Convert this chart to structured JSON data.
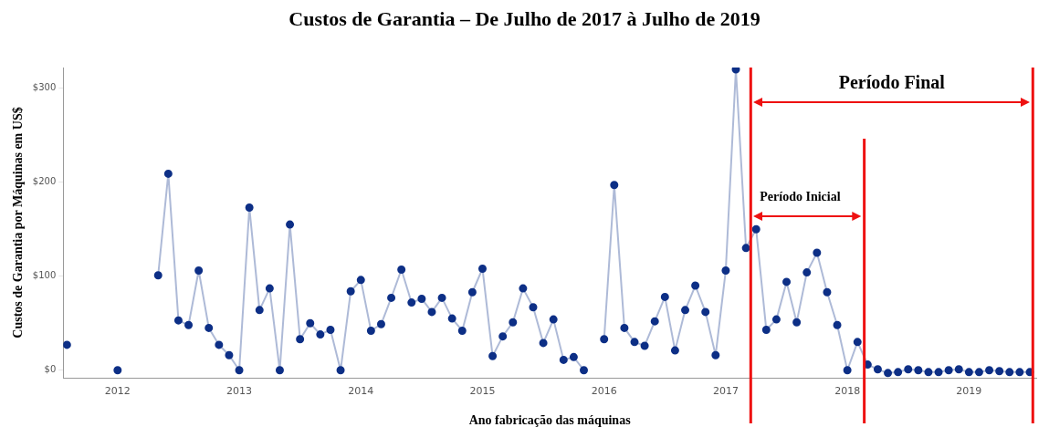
{
  "chart_data": {
    "type": "line",
    "title": "Custos de Garantia – De Julho de 2017 à Julho de 2019",
    "xlabel": "Ano fabricação das máquinas",
    "ylabel": "Custos de Garantia por Máquinas em US$",
    "x": [
      "2011-08",
      "2011-10",
      "2012-01",
      "2012-03",
      "2012-05",
      "2012-06",
      "2012-07",
      "2012-08",
      "2012-09",
      "2012-10",
      "2012-11",
      "2012-12",
      "2013-01",
      "2013-02",
      "2013-03",
      "2013-04",
      "2013-05",
      "2013-06",
      "2013-07",
      "2013-08",
      "2013-09",
      "2013-10",
      "2013-11",
      "2013-12",
      "2014-01",
      "2014-02",
      "2014-03",
      "2014-04",
      "2014-05",
      "2014-06",
      "2014-07",
      "2014-08",
      "2014-09",
      "2014-10",
      "2014-11",
      "2014-12",
      "2015-01",
      "2015-02",
      "2015-03",
      "2015-04",
      "2015-05",
      "2015-06",
      "2015-07",
      "2015-08",
      "2015-09",
      "2015-10",
      "2015-11",
      "2015-12",
      "2016-01",
      "2016-02",
      "2016-03",
      "2016-04",
      "2016-05",
      "2016-06",
      "2016-07",
      "2016-08",
      "2016-09",
      "2016-10",
      "2016-11",
      "2016-12",
      "2017-01",
      "2017-02",
      "2017-03",
      "2017-04",
      "2017-05",
      "2017-06",
      "2017-07",
      "2017-08",
      "2017-09",
      "2017-10",
      "2017-11",
      "2017-12",
      "2018-01",
      "2018-02",
      "2018-03",
      "2018-04",
      "2018-05",
      "2018-06",
      "2018-07",
      "2018-08",
      "2018-09",
      "2018-10",
      "2018-11",
      "2018-12",
      "2019-01",
      "2019-02",
      "2019-03",
      "2019-04",
      "2019-05",
      "2019-06",
      "2019-07"
    ],
    "series": [
      {
        "color": "#0d2f86",
        "values": [
          27,
          null,
          0,
          null,
          101,
          209,
          53,
          48,
          106,
          45,
          27,
          16,
          0,
          173,
          64,
          87,
          0,
          155,
          33,
          50,
          38,
          43,
          0,
          84,
          96,
          42,
          49,
          77,
          107,
          72,
          76,
          62,
          77,
          55,
          42,
          83,
          108,
          15,
          36,
          51,
          87,
          67,
          29,
          54,
          11,
          14,
          0,
          null,
          33,
          197,
          45,
          30,
          26,
          52,
          78,
          21,
          64,
          90,
          62,
          16,
          106,
          320,
          130,
          150,
          43,
          54,
          94,
          51,
          104,
          125,
          83,
          48,
          0,
          30,
          6,
          1,
          -3,
          -2,
          1,
          0,
          -2,
          -2,
          0,
          1,
          -2,
          -2,
          0,
          -1,
          -2,
          -2,
          -2
        ]
      }
    ],
    "xlim": [
      "2011-07-20",
      "2019-07-20"
    ],
    "xticks": [
      {
        "value": "2012",
        "label": "2012"
      },
      {
        "value": "2013",
        "label": "2013"
      },
      {
        "value": "2014",
        "label": "2014"
      },
      {
        "value": "2015",
        "label": "2015"
      },
      {
        "value": "2016",
        "label": "2016"
      },
      {
        "value": "2017",
        "label": "2017"
      },
      {
        "value": "2018",
        "label": "2018"
      },
      {
        "value": "2019",
        "label": "2019"
      }
    ],
    "ylim": [
      -8,
      322
    ],
    "yticks": [
      {
        "value": 0,
        "label": "$0"
      },
      {
        "value": 100,
        "label": "$100"
      },
      {
        "value": 200,
        "label": "$200"
      },
      {
        "value": 300,
        "label": "$300"
      }
    ],
    "ref_lines": [
      {
        "axis": "x",
        "value": "2017-03-15",
        "color": "#ee1111"
      },
      {
        "axis": "x",
        "value": "2019-07-10",
        "color": "#ee1111"
      },
      {
        "axis": "x",
        "value": "2018-02-21",
        "color": "#ee1111"
      }
    ],
    "annotations": [
      "Período Final",
      "Período Inicial"
    ],
    "grid": false,
    "legend": false,
    "marker": "circle",
    "line_style": "solid"
  }
}
